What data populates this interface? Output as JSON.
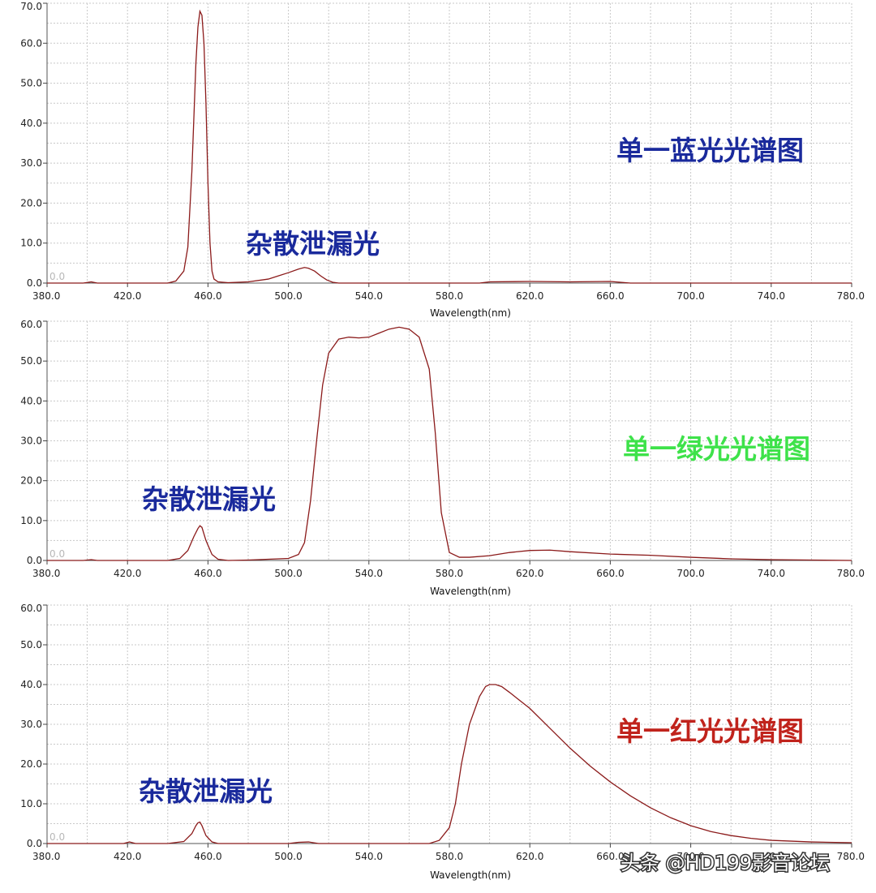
{
  "watermark": "头条 @HD199影音论坛",
  "chart_data": [
    {
      "type": "line",
      "title": "单一蓝光光谱图",
      "title_color": "#1a2a9c",
      "annotation": "杂散泄漏光",
      "annotation_color": "#1a2a9c",
      "xlabel": "Wavelength(nm)",
      "ylabel": "",
      "xlim": [
        380,
        780
      ],
      "ylim": [
        0,
        70
      ],
      "xticks": [
        "380.0",
        "420.0",
        "460.0",
        "500.0",
        "540.0",
        "580.0",
        "620.0",
        "660.0",
        "700.0",
        "740.0",
        "780.0"
      ],
      "yticks": [
        "0.0",
        "10.0",
        "20.0",
        "30.0",
        "40.0",
        "50.0",
        "60.0",
        "70.0"
      ],
      "zero_text": "0.0",
      "grid": true,
      "line_color": "#8b1a1a",
      "series": [
        {
          "x": [
            380,
            398,
            402,
            405,
            440,
            444,
            448,
            450,
            452,
            454,
            455,
            456,
            457,
            458,
            459,
            460,
            461,
            462,
            463,
            465,
            470,
            480,
            490,
            495,
            500,
            505,
            508,
            510,
            513,
            516,
            519,
            522,
            525,
            530,
            540,
            560,
            580,
            595,
            600,
            620,
            640,
            660,
            665,
            670,
            700,
            740,
            780
          ],
          "y": [
            0,
            0,
            0.3,
            0,
            0,
            0.5,
            3,
            9,
            28,
            55,
            64,
            68,
            67,
            60,
            45,
            25,
            10,
            3,
            1,
            0.3,
            0.1,
            0.3,
            1,
            1.8,
            2.6,
            3.5,
            3.9,
            3.7,
            3,
            1.8,
            0.8,
            0.2,
            0,
            0,
            0,
            0,
            0,
            0,
            0.3,
            0.4,
            0.3,
            0.4,
            0.2,
            0,
            0,
            0,
            0
          ]
        }
      ]
    },
    {
      "type": "line",
      "title": "单一绿光光谱图",
      "title_color": "#3ee24a",
      "annotation": "杂散泄漏光",
      "annotation_color": "#1a2a9c",
      "xlabel": "Wavelength(nm)",
      "ylabel": "",
      "xlim": [
        380,
        780
      ],
      "ylim": [
        0,
        60
      ],
      "xticks": [
        "380.0",
        "420.0",
        "460.0",
        "500.0",
        "540.0",
        "580.0",
        "620.0",
        "660.0",
        "700.0",
        "740.0",
        "780.0"
      ],
      "yticks": [
        "0.0",
        "10.0",
        "20.0",
        "30.0",
        "40.0",
        "50.0",
        "60.0"
      ],
      "zero_text": "0.0",
      "grid": true,
      "line_color": "#8b1a1a",
      "series": [
        {
          "x": [
            380,
            398,
            402,
            405,
            440,
            446,
            450,
            453,
            455,
            456,
            457,
            459,
            462,
            465,
            470,
            480,
            500,
            505,
            508,
            511,
            514,
            517,
            520,
            525,
            530,
            535,
            540,
            545,
            550,
            555,
            560,
            565,
            570,
            573,
            576,
            580,
            585,
            590,
            600,
            610,
            620,
            630,
            640,
            660,
            680,
            700,
            720,
            740,
            760,
            780
          ],
          "y": [
            0,
            0,
            0.2,
            0,
            0,
            0.5,
            2.5,
            6,
            8,
            8.7,
            8.3,
            5,
            1.5,
            0.3,
            0,
            0.1,
            0.5,
            1.5,
            4.5,
            15,
            30,
            44,
            52,
            55.5,
            56,
            55.8,
            56,
            57,
            58,
            58.5,
            58,
            56,
            48,
            32,
            12,
            2,
            0.8,
            0.8,
            1.2,
            2,
            2.5,
            2.6,
            2.2,
            1.6,
            1.3,
            0.8,
            0.4,
            0.2,
            0.1,
            0
          ]
        }
      ]
    },
    {
      "type": "line",
      "title": "单一红光光谱图",
      "title_color": "#c0231c",
      "annotation": "杂散泄漏光",
      "annotation_color": "#1a2a9c",
      "xlabel": "Wavelength(nm)",
      "ylabel": "",
      "xlim": [
        380,
        780
      ],
      "ylim": [
        0,
        60
      ],
      "xticks": [
        "380.0",
        "420.0",
        "460.0",
        "500.0",
        "540.0",
        "580.0",
        "620.0",
        "660.0",
        "700.0",
        "740.0",
        "780.0"
      ],
      "yticks": [
        "0.0",
        "10.0",
        "20.0",
        "30.0",
        "40.0",
        "50.0",
        "60.0"
      ],
      "zero_text": "0.0",
      "grid": true,
      "line_color": "#8b1a1a",
      "series": [
        {
          "x": [
            380,
            418,
            421,
            424,
            440,
            448,
            452,
            454,
            455,
            456,
            457,
            459,
            462,
            465,
            500,
            505,
            510,
            515,
            570,
            575,
            580,
            583,
            586,
            590,
            595,
            598,
            600,
            603,
            606,
            610,
            620,
            630,
            640,
            650,
            660,
            670,
            680,
            690,
            700,
            710,
            720,
            730,
            740,
            760,
            780
          ],
          "y": [
            0,
            0,
            0.4,
            0,
            0,
            0.5,
            2.5,
            4.5,
            5.2,
            5.4,
            4.5,
            2,
            0.4,
            0,
            0,
            0.3,
            0.4,
            0,
            0,
            0.8,
            4,
            10,
            20,
            30,
            37,
            39.5,
            40,
            40,
            39.5,
            38,
            34,
            29,
            24,
            19.5,
            15.5,
            12,
            9,
            6.5,
            4.5,
            3,
            2,
            1.3,
            0.8,
            0.4,
            0.2
          ]
        }
      ]
    }
  ]
}
